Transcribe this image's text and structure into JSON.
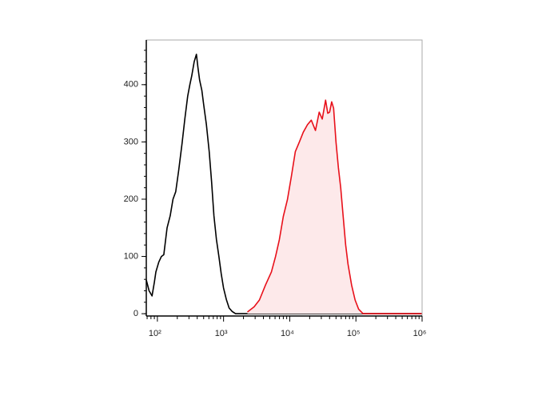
{
  "chart_data": {
    "type": "line",
    "log_x": true,
    "xlim": [
      68,
      1000000
    ],
    "ylim": [
      -4,
      478
    ],
    "xticks": [
      {
        "value": 100,
        "label": "10²"
      },
      {
        "value": 1000,
        "label": "10³"
      },
      {
        "value": 10000,
        "label": "10⁴"
      },
      {
        "value": 100000,
        "label": "10⁵"
      },
      {
        "value": 1000000,
        "label": "10⁶"
      }
    ],
    "yticks": [
      0,
      100,
      200,
      300,
      400
    ],
    "series": [
      {
        "color": "#000000",
        "fill": false,
        "x": [
          68,
          75,
          83,
          90,
          95,
          105,
          115,
          125,
          140,
          156,
          172,
          189,
          210,
          236,
          260,
          287,
          310,
          330,
          360,
          389,
          410,
          435,
          470,
          500,
          550,
          607,
          660,
          716,
          780,
          847,
          920,
          1000,
          1100,
          1214,
          1350,
          1517,
          2000,
          1000000
        ],
        "values": [
          59,
          40,
          31,
          55,
          73,
          90,
          100,
          103,
          150,
          171,
          200,
          213,
          250,
          297,
          340,
          380,
          400,
          415,
          440,
          453,
          430,
          408,
          390,
          366,
          330,
          283,
          230,
          171,
          130,
          101,
          70,
          45,
          25,
          10,
          4,
          0,
          0,
          0
        ]
      },
      {
        "color": "#e8101a",
        "fill": true,
        "fill_color": "#fde9ea",
        "x": [
          2296,
          2900,
          3483,
          4300,
          5284,
          6100,
          6968,
          8000,
          9204,
          10600,
          12140,
          14000,
          16030,
          18500,
          21150,
          24500,
          27920,
          31000,
          34830,
          37500,
          39990,
          43000,
          45980,
          50000,
          54300,
          59000,
          64130,
          70000,
          75800,
          86000,
          97200,
          110000,
          128200,
          1000000
        ],
        "values": [
          3,
          12,
          24,
          50,
          73,
          100,
          129,
          170,
          199,
          240,
          283,
          300,
          317,
          330,
          338,
          320,
          352,
          340,
          373,
          350,
          352,
          370,
          359,
          300,
          255,
          220,
          171,
          120,
          87,
          50,
          24,
          8,
          0,
          0
        ]
      }
    ]
  }
}
